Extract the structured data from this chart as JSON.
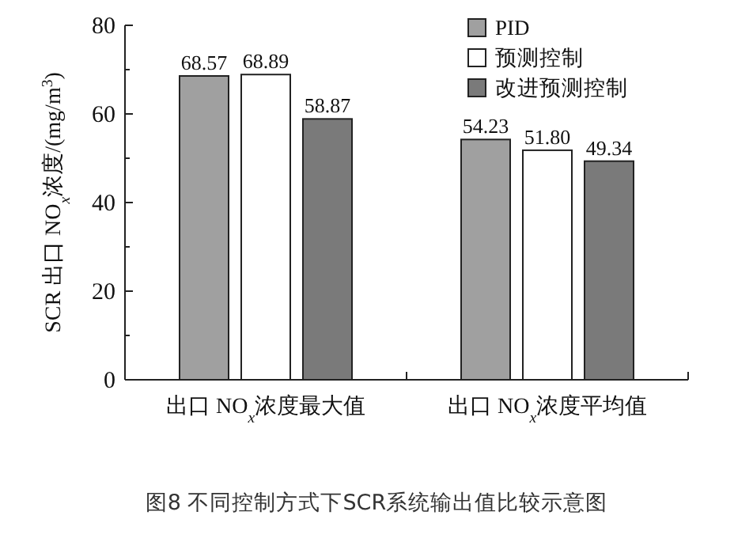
{
  "chart_data": {
    "type": "bar",
    "categories": [
      "出口 NO$_{x}$浓度最大值",
      "出口 NO$_{x}$浓度平均值"
    ],
    "ylabel": "SCR 出口 NO$_{x}$浓度/(mg/m$^{3}$)",
    "ylim": [
      0,
      80
    ],
    "yticks": [
      0,
      {
        "value": 10,
        "label": null
      },
      20,
      {
        "value": 30,
        "label": null
      },
      40,
      {
        "value": 50,
        "label": null
      },
      60,
      {
        "value": 70,
        "label": null
      },
      80
    ],
    "series": [
      {
        "name": "PID",
        "color": "#a0a0a0",
        "values": [
          68.57,
          54.23
        ],
        "value_labels": [
          "68.57",
          "54.23"
        ]
      },
      {
        "name": "预测控制",
        "color": "#ffffff",
        "values": [
          68.89,
          51.8
        ],
        "value_labels": [
          "68.89",
          "51.80"
        ]
      },
      {
        "name": "改进预测控制",
        "color": "#7a7a7a",
        "values": [
          58.87,
          49.34
        ],
        "value_labels": [
          "58.87",
          "49.34"
        ]
      }
    ],
    "legend": "top right",
    "grid": false,
    "annotations": [
      "图8 不同控制方式下SCR系统输出值比较示意图"
    ]
  }
}
